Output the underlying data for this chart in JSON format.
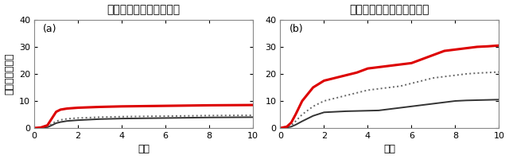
{
  "title_left": "磁力線が南北対称な場合",
  "title_right": "磁力線が南北非対称な場合",
  "xlabel": "時間",
  "ylabel": "電子の消失率％",
  "label_a": "(a)",
  "label_b": "(b)",
  "xlim": [
    0,
    10
  ],
  "ylim": [
    0,
    40
  ],
  "yticks": [
    0,
    10,
    20,
    30,
    40
  ],
  "xticks": [
    0,
    2,
    4,
    6,
    8,
    10
  ],
  "panel_a": {
    "red_solid": {
      "x": [
        0,
        0.3,
        0.6,
        0.8,
        1.0,
        1.2,
        1.5,
        2.0,
        3.0,
        4.0,
        5.0,
        6.0,
        7.0,
        8.0,
        9.0,
        10.0
      ],
      "y": [
        0,
        0.2,
        1.0,
        3.5,
        6.0,
        6.8,
        7.2,
        7.5,
        7.8,
        8.0,
        8.1,
        8.2,
        8.3,
        8.4,
        8.45,
        8.5
      ]
    },
    "dark_dotted": {
      "x": [
        0,
        0.3,
        0.6,
        0.8,
        1.0,
        1.2,
        1.5,
        2.0,
        3.0,
        4.0,
        5.0,
        6.0,
        7.0,
        8.0,
        9.0,
        10.0
      ],
      "y": [
        0,
        0.1,
        0.5,
        1.5,
        2.5,
        3.0,
        3.4,
        3.7,
        4.0,
        4.2,
        4.3,
        4.4,
        4.5,
        4.6,
        4.65,
        4.7
      ]
    },
    "dark_solid": {
      "x": [
        0,
        0.3,
        0.6,
        0.8,
        1.0,
        1.2,
        1.5,
        2.0,
        3.0,
        4.0,
        5.0,
        6.0,
        7.0,
        8.0,
        9.0,
        10.0
      ],
      "y": [
        0,
        0.05,
        0.3,
        1.0,
        1.8,
        2.2,
        2.6,
        2.9,
        3.3,
        3.5,
        3.6,
        3.7,
        3.8,
        3.9,
        3.95,
        4.0
      ]
    }
  },
  "panel_b": {
    "red_solid": {
      "x": [
        0,
        0.3,
        0.5,
        0.7,
        1.0,
        1.5,
        2.0,
        2.5,
        3.0,
        3.5,
        4.0,
        4.5,
        5.0,
        5.5,
        6.0,
        6.5,
        7.0,
        7.5,
        8.0,
        8.5,
        9.0,
        9.5,
        10.0
      ],
      "y": [
        0,
        0.5,
        2.0,
        5.0,
        10.0,
        15.0,
        17.5,
        18.5,
        19.5,
        20.5,
        22.0,
        22.5,
        23.0,
        23.5,
        24.0,
        25.5,
        27.0,
        28.5,
        29.0,
        29.5,
        30.0,
        30.2,
        30.5
      ]
    },
    "dark_dotted": {
      "x": [
        0,
        0.3,
        0.5,
        0.7,
        1.0,
        1.5,
        2.0,
        2.5,
        3.0,
        3.5,
        4.0,
        4.5,
        5.0,
        5.5,
        6.0,
        6.5,
        7.0,
        7.5,
        8.0,
        8.5,
        9.0,
        9.5,
        10.0
      ],
      "y": [
        0,
        0.3,
        1.0,
        2.5,
        5.0,
        8.0,
        10.0,
        11.0,
        12.0,
        13.0,
        14.0,
        14.5,
        15.0,
        15.5,
        16.5,
        17.5,
        18.5,
        19.0,
        19.5,
        20.0,
        20.3,
        20.5,
        20.7
      ]
    },
    "dark_solid": {
      "x": [
        0,
        0.3,
        0.5,
        0.7,
        1.0,
        1.5,
        2.0,
        2.5,
        3.0,
        3.5,
        4.0,
        4.5,
        5.0,
        5.5,
        6.0,
        6.5,
        7.0,
        7.5,
        8.0,
        8.5,
        9.0,
        9.5,
        10.0
      ],
      "y": [
        0,
        0.2,
        0.5,
        1.2,
        2.5,
        4.5,
        5.8,
        6.0,
        6.2,
        6.3,
        6.4,
        6.5,
        7.0,
        7.5,
        8.0,
        8.5,
        9.0,
        9.5,
        10.0,
        10.2,
        10.3,
        10.4,
        10.5
      ]
    }
  },
  "colors": {
    "red": "#dd0000",
    "dark_gray": "#333333",
    "medium_gray": "#666666"
  },
  "linewidth_red": 2.2,
  "linewidth_dark": 1.4,
  "title_fontsize": 10,
  "label_fontsize": 9,
  "tick_fontsize": 8,
  "background_color": "#ffffff"
}
